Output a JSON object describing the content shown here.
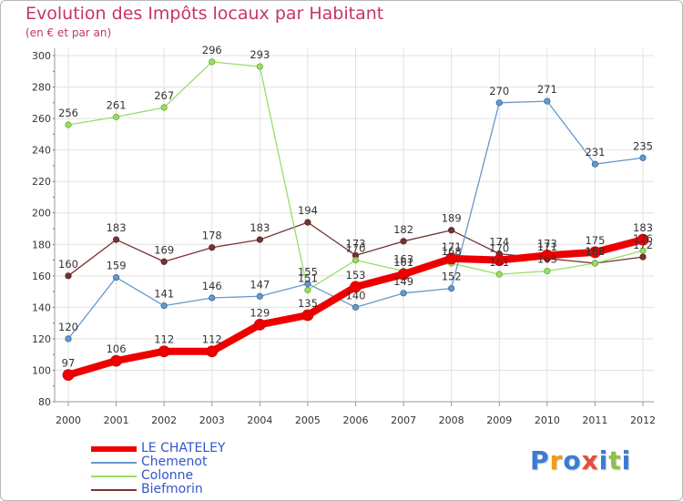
{
  "chart_data": {
    "type": "line",
    "title": "Evolution des Impôts locaux par Habitant",
    "subtitle": "(en € et par an)",
    "xlabel": "",
    "ylabel": "",
    "ylim": [
      80,
      300
    ],
    "yticks": [
      80,
      100,
      120,
      140,
      160,
      180,
      200,
      220,
      240,
      260,
      280,
      300
    ],
    "grid": true,
    "legend_position": "bottom-left",
    "x": [
      "2000",
      "2001",
      "2002",
      "2003",
      "2004",
      "2005",
      "2006",
      "2007",
      "2008",
      "2009",
      "2010",
      "2011",
      "2012"
    ],
    "series": [
      {
        "name": "LE CHATELEY",
        "color": "#ee0000",
        "values": [
          97,
          106,
          112,
          112,
          129,
          135,
          153,
          161,
          171,
          170,
          173,
          175,
          183
        ]
      },
      {
        "name": "Chemenot",
        "color": "#6699cc",
        "values": [
          120,
          159,
          141,
          146,
          147,
          155,
          140,
          149,
          152,
          270,
          271,
          231,
          235
        ]
      },
      {
        "name": "Colonne",
        "color": "#99dd66",
        "values": [
          256,
          261,
          267,
          296,
          293,
          151,
          170,
          163,
          168,
          161,
          163,
          168,
          176
        ]
      },
      {
        "name": "Biefmorin",
        "color": "#773333",
        "values": [
          160,
          183,
          169,
          178,
          183,
          194,
          173,
          182,
          189,
          174,
          171,
          168,
          172
        ]
      }
    ],
    "point_labels": [
      [
        "97",
        "106",
        "112",
        "112",
        "129",
        "135",
        "153",
        "161",
        "171",
        "170",
        "173",
        "175",
        "183"
      ],
      [
        "120",
        "159",
        "141",
        "146",
        "147",
        "155",
        "140",
        "149",
        "152",
        "270",
        "271",
        "231",
        "235"
      ],
      [
        "256",
        "261",
        "267",
        "296",
        "293",
        "151",
        "170",
        "163",
        "168",
        "161",
        "163",
        "168",
        "176"
      ],
      [
        "160",
        "183",
        "169",
        "178",
        "183",
        "194",
        "173",
        "182",
        "189",
        "174",
        "171",
        "168",
        "172"
      ]
    ]
  },
  "logo": {
    "letters": [
      "P",
      "r",
      "o",
      "x",
      "i",
      "t",
      "i"
    ],
    "colors": [
      "#3a7bd5",
      "#f39c12",
      "#3a7bd5",
      "#e74c3c",
      "#3a7bd5",
      "#8bc34a",
      "#3a7bd5"
    ]
  }
}
